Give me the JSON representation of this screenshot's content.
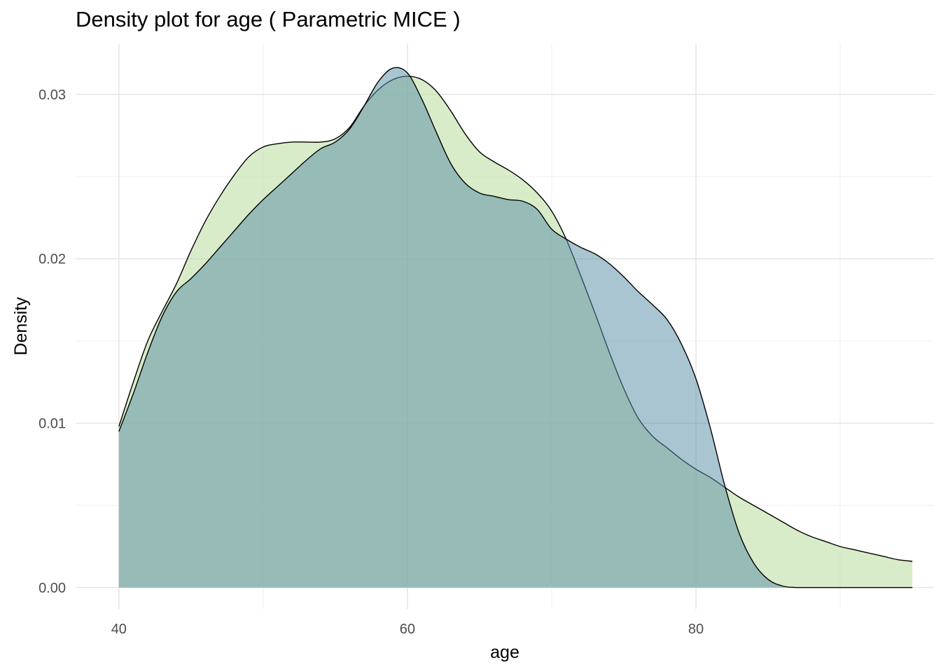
{
  "chart_data": {
    "type": "area",
    "title": "Density plot for age ( Parametric MICE )",
    "xlabel": "age",
    "ylabel": "Density",
    "xlim": [
      37,
      96.5
    ],
    "ylim": [
      -0.0013,
      0.0331
    ],
    "x_ticks": [
      40,
      60,
      80
    ],
    "y_ticks": [
      0.0,
      0.01,
      0.02,
      0.03
    ],
    "x_tick_labels": [
      "40",
      "60",
      "80"
    ],
    "y_tick_labels": [
      "0.00",
      "0.01",
      "0.02",
      "0.03"
    ],
    "grid": true,
    "legend": "none",
    "series": [
      {
        "fill": "#c1e0a8",
        "opacity": 0.62,
        "x": [
          40,
          41,
          42,
          43,
          44,
          45,
          46,
          47,
          48,
          49,
          50,
          51,
          52,
          53,
          54,
          55,
          56,
          57,
          58,
          59,
          60,
          61,
          62,
          63,
          64,
          65,
          66,
          67,
          68,
          69,
          70,
          71,
          72,
          73,
          74,
          75,
          76,
          77,
          78,
          79,
          80,
          81,
          82,
          83,
          84,
          85,
          86,
          87,
          88,
          89,
          90,
          91,
          92,
          93,
          94,
          95
        ],
        "values": [
          0.0098,
          0.0125,
          0.015,
          0.0168,
          0.0185,
          0.0205,
          0.0223,
          0.0238,
          0.0251,
          0.0262,
          0.0268,
          0.027,
          0.0271,
          0.0271,
          0.0271,
          0.0273,
          0.028,
          0.0293,
          0.0303,
          0.0309,
          0.0311,
          0.0309,
          0.0302,
          0.029,
          0.0276,
          0.0265,
          0.0259,
          0.0254,
          0.0248,
          0.024,
          0.0229,
          0.0212,
          0.019,
          0.0167,
          0.0143,
          0.0121,
          0.0103,
          0.0092,
          0.0085,
          0.0078,
          0.0072,
          0.0067,
          0.0061,
          0.0055,
          0.005,
          0.0045,
          0.004,
          0.0035,
          0.0031,
          0.0028,
          0.0025,
          0.0023,
          0.0021,
          0.0019,
          0.0017,
          0.0016
        ]
      },
      {
        "fill": "#5b8fa8",
        "opacity": 0.52,
        "x": [
          40,
          41,
          42,
          43,
          44,
          45,
          46,
          47,
          48,
          49,
          50,
          51,
          52,
          53,
          54,
          55,
          56,
          57,
          58,
          59,
          60,
          61,
          62,
          63,
          64,
          65,
          66,
          67,
          68,
          69,
          70,
          71,
          72,
          73,
          74,
          75,
          76,
          77,
          78,
          79,
          80,
          81,
          82,
          83,
          84,
          85,
          86,
          87,
          88,
          89,
          90,
          91,
          92,
          93,
          94,
          95
        ],
        "values": [
          0.0095,
          0.0118,
          0.0143,
          0.0165,
          0.018,
          0.0188,
          0.0197,
          0.0207,
          0.0217,
          0.0227,
          0.0236,
          0.0244,
          0.0252,
          0.026,
          0.0267,
          0.0271,
          0.0279,
          0.0293,
          0.0308,
          0.0316,
          0.0313,
          0.0297,
          0.0277,
          0.0258,
          0.0246,
          0.024,
          0.0238,
          0.0236,
          0.0235,
          0.023,
          0.0218,
          0.0212,
          0.0207,
          0.0203,
          0.0197,
          0.0189,
          0.018,
          0.0172,
          0.0163,
          0.0148,
          0.0127,
          0.0097,
          0.0062,
          0.0033,
          0.0015,
          0.0005,
          0.0001,
          0.0,
          0.0,
          0.0,
          0.0,
          0.0,
          0.0,
          0.0,
          0.0,
          0.0
        ]
      }
    ]
  }
}
